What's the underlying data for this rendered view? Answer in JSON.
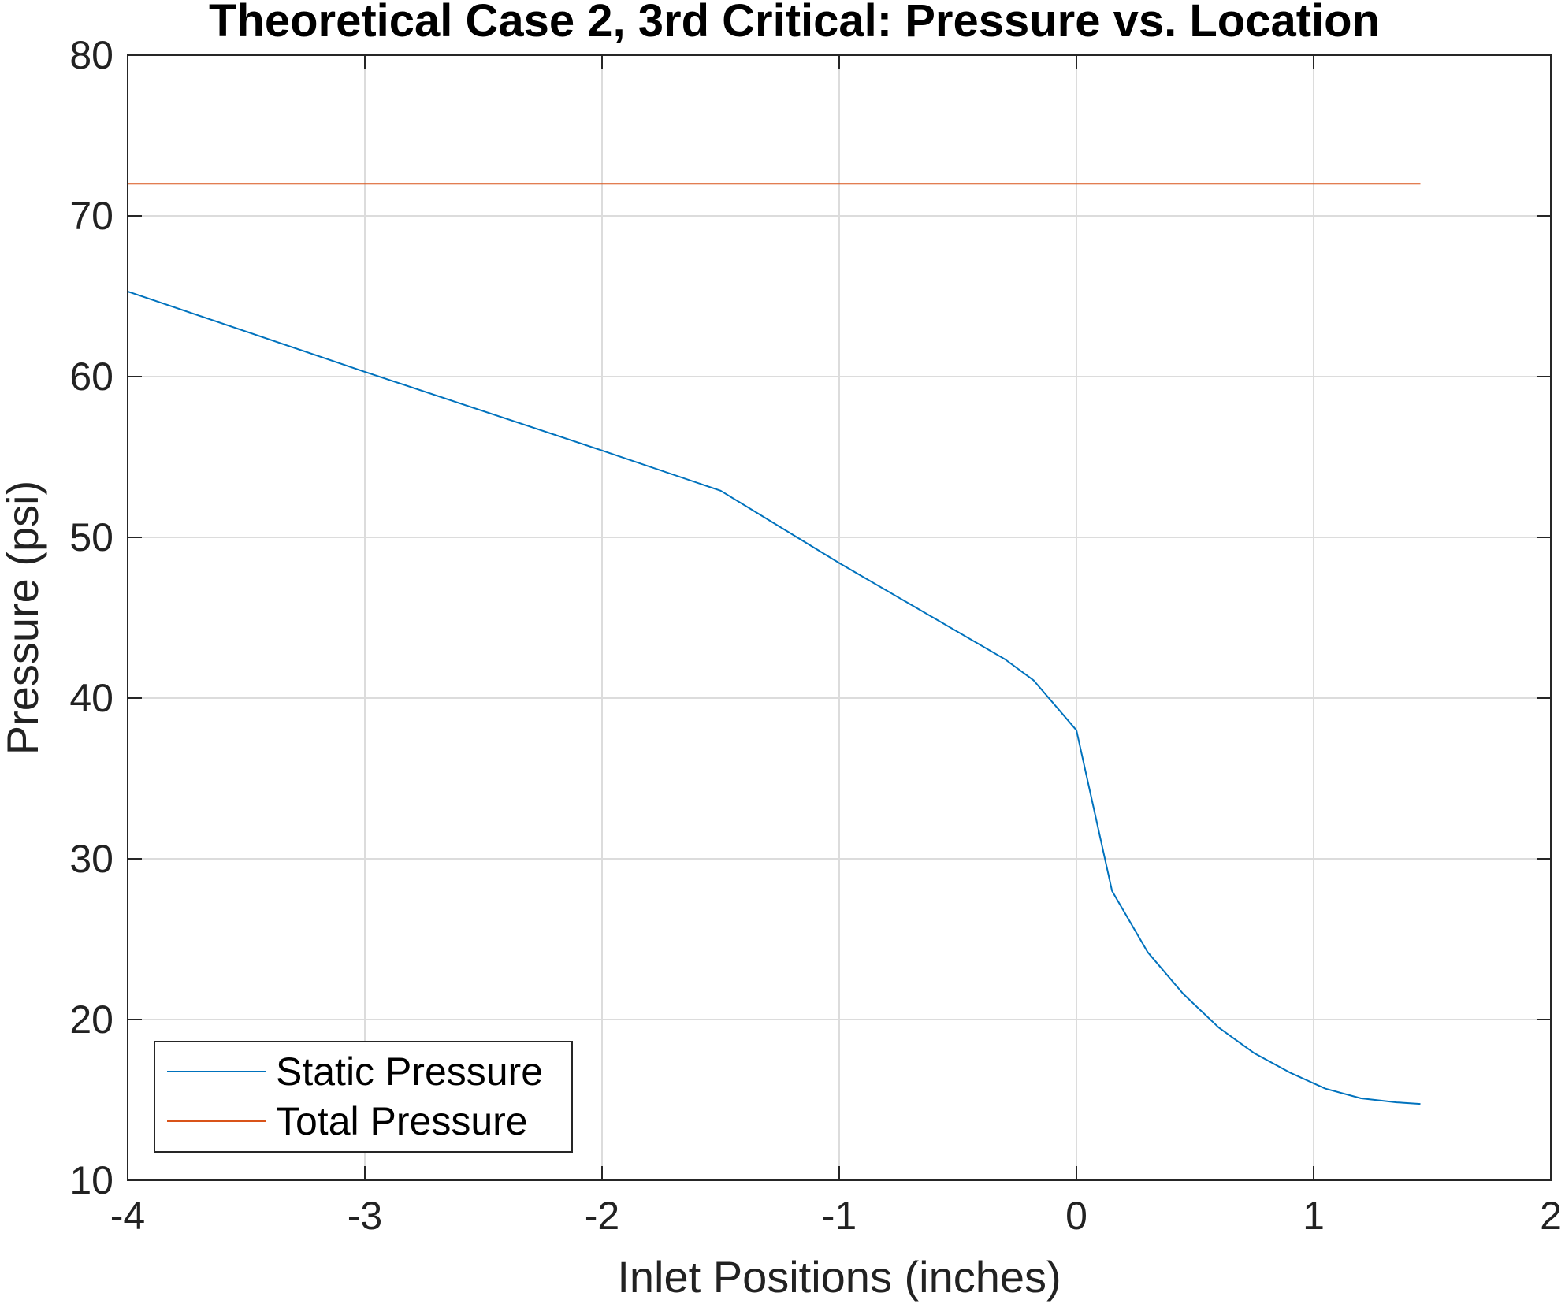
{
  "chart_data": {
    "type": "line",
    "title": "Theoretical Case 2, 3rd Critical: Pressure vs. Location",
    "xlabel": "Inlet Positions (inches)",
    "ylabel": "Pressure (psi)",
    "xlim": [
      -4,
      2
    ],
    "ylim": [
      10,
      80
    ],
    "xticks": [
      -4,
      -3,
      -2,
      -1,
      0,
      1,
      2
    ],
    "yticks": [
      10,
      20,
      30,
      40,
      50,
      60,
      70,
      80
    ],
    "grid": true,
    "legend_position": "bottom-left",
    "series": [
      {
        "name": "Static Pressure",
        "color": "#0072BD",
        "x": [
          -4,
          -3,
          -2,
          -1.5,
          -1,
          -0.3,
          -0.18,
          0,
          0.15,
          0.3,
          0.45,
          0.6,
          0.75,
          0.9,
          1.05,
          1.2,
          1.35,
          1.45
        ],
        "y": [
          65.3,
          60.3,
          55.4,
          52.9,
          48.4,
          42.4,
          41.1,
          38.0,
          28.0,
          24.2,
          21.6,
          19.5,
          17.9,
          16.7,
          15.7,
          15.1,
          14.85,
          14.75
        ]
      },
      {
        "name": "Total Pressure",
        "color": "#D95319",
        "x": [
          -4,
          1.45
        ],
        "y": [
          72.0,
          72.0
        ]
      }
    ]
  }
}
